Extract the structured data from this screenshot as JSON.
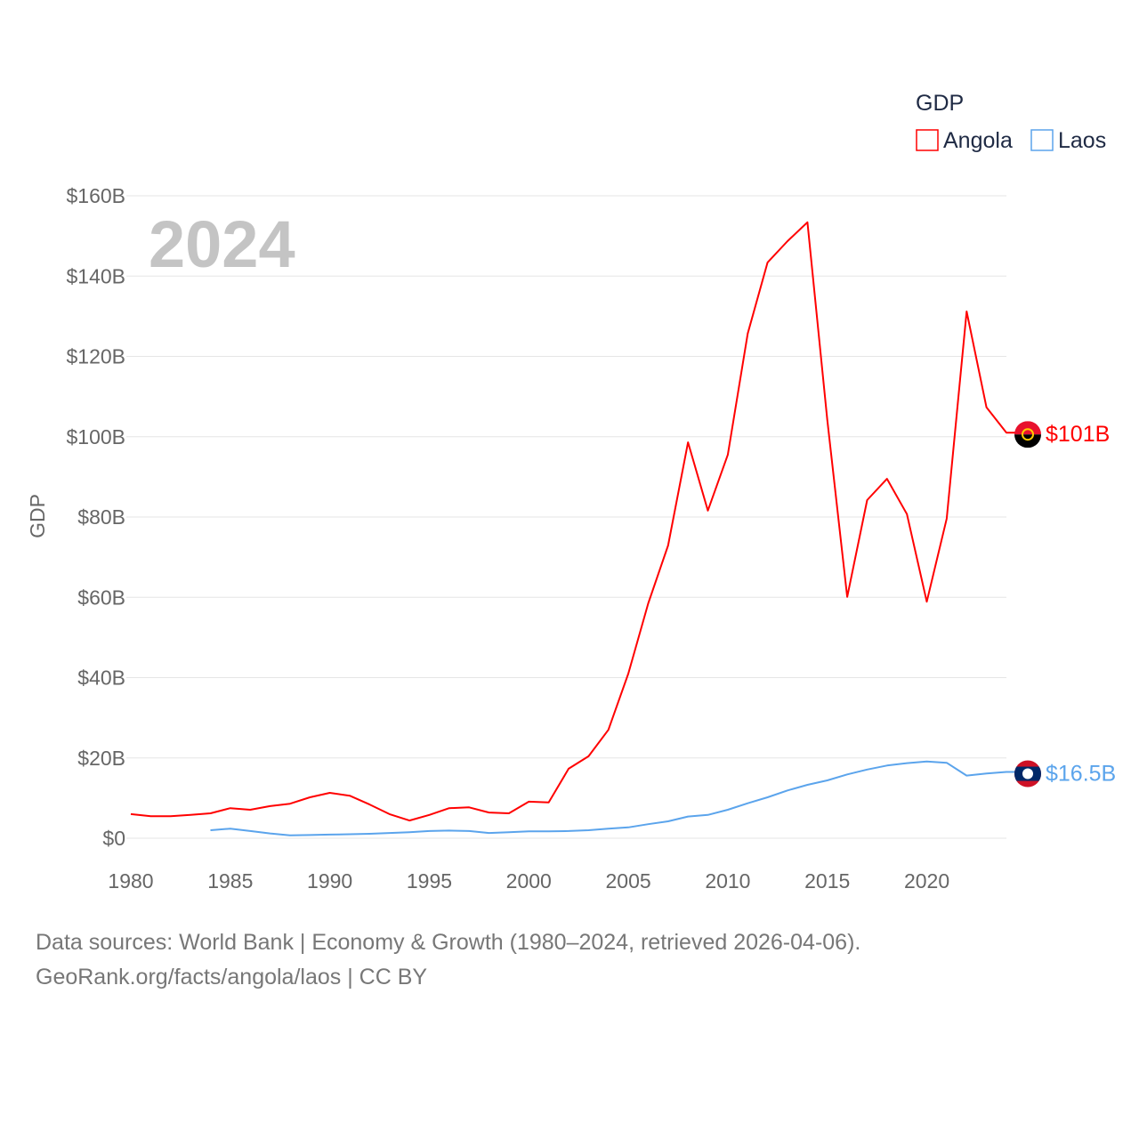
{
  "chart_data": {
    "type": "line",
    "title": "GDP",
    "year_label": "2024",
    "ylabel": "GDP",
    "xlabel": "",
    "xlim": [
      1980,
      2024
    ],
    "ylim": [
      0,
      160
    ],
    "x_ticks": [
      "1980",
      "1985",
      "1990",
      "1995",
      "2000",
      "2005",
      "2010",
      "2015",
      "2020"
    ],
    "y_ticks": [
      "$0",
      "$20B",
      "$40B",
      "$60B",
      "$80B",
      "$100B",
      "$120B",
      "$140B",
      "$160B"
    ],
    "y_tick_values": [
      0,
      20,
      40,
      60,
      80,
      100,
      120,
      140,
      160
    ],
    "legend_placement": "top-right",
    "grid": true,
    "series": [
      {
        "name": "Angola",
        "color": "#ff0000",
        "end_label": "$101B",
        "start_year": 1980,
        "values": [
          6.0,
          5.5,
          5.5,
          5.8,
          6.2,
          7.5,
          7.1,
          8.0,
          8.6,
          10.2,
          11.3,
          10.6,
          8.4,
          6.0,
          4.4,
          5.8,
          7.5,
          7.7,
          6.4,
          6.2,
          9.1,
          8.9,
          17.3,
          20.4,
          27.0,
          41.0,
          58.5,
          72.9,
          98.6,
          81.6,
          95.5,
          125.7,
          143.4,
          148.7,
          153.4,
          104.2,
          60.1,
          84.2,
          89.5,
          80.7,
          58.9,
          79.6,
          131.2,
          107.3,
          101.0
        ]
      },
      {
        "name": "Laos",
        "color": "#5ba4ec",
        "end_label": "$16.5B",
        "start_year": 1984,
        "values": [
          2.0,
          2.4,
          1.8,
          1.2,
          0.7,
          0.8,
          0.9,
          1.0,
          1.1,
          1.3,
          1.5,
          1.8,
          1.9,
          1.8,
          1.3,
          1.5,
          1.7,
          1.7,
          1.8,
          2.0,
          2.4,
          2.7,
          3.5,
          4.2,
          5.4,
          5.8,
          7.1,
          8.7,
          10.2,
          11.9,
          13.3,
          14.4,
          15.9,
          17.1,
          18.1,
          18.7,
          19.1,
          18.8,
          15.6,
          16.1,
          16.5
        ]
      }
    ]
  },
  "footer": {
    "line1": "Data sources: World Bank | Economy & Growth (1980–2024, retrieved 2026-04-06).",
    "line2": "GeoRank.org/facts/angola/laos | CC BY"
  }
}
